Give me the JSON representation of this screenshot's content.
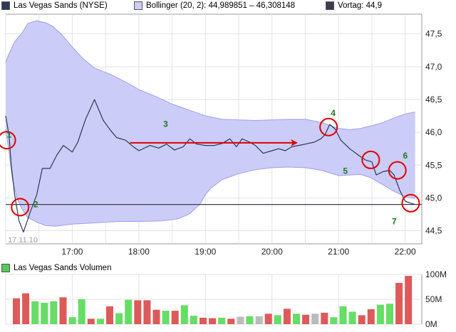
{
  "legend": {
    "price_label": "Las Vegas Sands (NYSE)",
    "bollinger_label": "Bollinger (20, 2): 44,989851 – 46,308148",
    "prev_close_label": "Vortag: 44,9",
    "volume_label": "Las Vegas Sands Volumen"
  },
  "colors": {
    "price_line": "#2b3a55",
    "band_fill": "#ccccf8",
    "band_edge": "#9f9fe6",
    "prev_close": "#3c3c50",
    "marker": "#dd0000",
    "annotation_text": "#1f7a1f",
    "vol_up": "#66dd66",
    "vol_down": "#dd5a5a",
    "vol_neutral": "#bbbbbb"
  },
  "chart_data": [
    {
      "type": "line",
      "date_label": "17.11.10",
      "x_ticks": [
        "17:00",
        "18:00",
        "19:00",
        "20:00",
        "21:00",
        "22:00"
      ],
      "y_ticks": [
        "44,5",
        "45,0",
        "45,5",
        "46,0",
        "46,5",
        "47,0",
        "47,5"
      ],
      "ylim": [
        44.3,
        47.8
      ],
      "xlim": [
        "16:00",
        "22:15"
      ],
      "grid": true,
      "prev_close": 44.9,
      "series": [
        {
          "name": "Las Vegas Sands (NYSE)",
          "points": [
            [
              "16:00",
              46.25
            ],
            [
              "16:03",
              45.95
            ],
            [
              "16:05",
              45.5
            ],
            [
              "16:08",
              45.05
            ],
            [
              "16:12",
              44.65
            ],
            [
              "16:16",
              44.48
            ],
            [
              "16:22",
              44.78
            ],
            [
              "16:28",
              45.05
            ],
            [
              "16:33",
              45.45
            ],
            [
              "16:40",
              45.45
            ],
            [
              "16:46",
              45.65
            ],
            [
              "16:52",
              45.8
            ],
            [
              "17:00",
              45.7
            ],
            [
              "17:05",
              45.85
            ],
            [
              "17:12",
              46.2
            ],
            [
              "17:20",
              46.5
            ],
            [
              "17:28",
              46.18
            ],
            [
              "17:35",
              46.02
            ],
            [
              "17:40",
              45.92
            ],
            [
              "17:48",
              45.88
            ],
            [
              "17:55",
              45.78
            ],
            [
              "18:00",
              45.72
            ],
            [
              "18:10",
              45.8
            ],
            [
              "18:18",
              45.76
            ],
            [
              "18:25",
              45.82
            ],
            [
              "18:32",
              45.73
            ],
            [
              "18:40",
              45.78
            ],
            [
              "18:46",
              45.9
            ],
            [
              "18:52",
              45.82
            ],
            [
              "19:00",
              45.8
            ],
            [
              "19:08",
              45.8
            ],
            [
              "19:15",
              45.83
            ],
            [
              "19:22",
              45.9
            ],
            [
              "19:28",
              45.78
            ],
            [
              "19:33",
              45.9
            ],
            [
              "19:40",
              45.85
            ],
            [
              "19:45",
              45.8
            ],
            [
              "19:52",
              45.68
            ],
            [
              "20:00",
              45.72
            ],
            [
              "20:06",
              45.75
            ],
            [
              "20:12",
              45.72
            ],
            [
              "20:18",
              45.78
            ],
            [
              "20:24",
              45.8
            ],
            [
              "20:30",
              45.82
            ],
            [
              "20:38",
              45.85
            ],
            [
              "20:44",
              45.9
            ],
            [
              "20:48",
              45.97
            ],
            [
              "20:52",
              46.12
            ],
            [
              "20:57",
              46.05
            ],
            [
              "21:02",
              45.88
            ],
            [
              "21:10",
              45.75
            ],
            [
              "21:18",
              45.65
            ],
            [
              "21:24",
              45.58
            ],
            [
              "21:30",
              45.55
            ],
            [
              "21:34",
              45.35
            ],
            [
              "21:40",
              45.4
            ],
            [
              "21:46",
              45.42
            ],
            [
              "21:50",
              45.35
            ],
            [
              "21:55",
              45.12
            ],
            [
              "22:00",
              44.95
            ],
            [
              "22:05",
              44.92
            ],
            [
              "22:09",
              44.9
            ]
          ]
        },
        {
          "name": "Bollinger (20, 2)",
          "upper": [
            [
              "16:00",
              47.07
            ],
            [
              "16:03",
              47.2
            ],
            [
              "16:08",
              47.38
            ],
            [
              "16:15",
              47.52
            ],
            [
              "16:20",
              47.66
            ],
            [
              "16:28",
              47.7
            ],
            [
              "16:36",
              47.67
            ],
            [
              "16:42",
              47.62
            ],
            [
              "16:50",
              47.5
            ],
            [
              "17:00",
              47.3
            ],
            [
              "17:10",
              47.12
            ],
            [
              "17:20",
              46.98
            ],
            [
              "17:35",
              46.88
            ],
            [
              "17:50",
              46.75
            ],
            [
              "18:00",
              46.65
            ],
            [
              "18:15",
              46.55
            ],
            [
              "18:30",
              46.43
            ],
            [
              "18:45",
              46.34
            ],
            [
              "19:00",
              46.25
            ],
            [
              "19:15",
              46.2
            ],
            [
              "19:30",
              46.19
            ],
            [
              "19:45",
              46.18
            ],
            [
              "20:00",
              46.19
            ],
            [
              "20:15",
              46.2
            ],
            [
              "20:30",
              46.2
            ],
            [
              "20:45",
              46.15
            ],
            [
              "21:00",
              46.06
            ],
            [
              "21:10",
              46.04
            ],
            [
              "21:20",
              46.06
            ],
            [
              "21:30",
              46.1
            ],
            [
              "21:40",
              46.15
            ],
            [
              "21:50",
              46.22
            ],
            [
              "22:00",
              46.28
            ],
            [
              "22:09",
              46.31
            ]
          ],
          "lower": [
            [
              "16:00",
              46.05
            ],
            [
              "16:03",
              45.7
            ],
            [
              "16:06",
              45.3
            ],
            [
              "16:10",
              45.0
            ],
            [
              "16:15",
              44.82
            ],
            [
              "16:20",
              44.7
            ],
            [
              "16:28",
              44.63
            ],
            [
              "16:36",
              44.58
            ],
            [
              "16:45",
              44.57
            ],
            [
              "17:00",
              44.6
            ],
            [
              "17:20",
              44.62
            ],
            [
              "17:40",
              44.64
            ],
            [
              "18:00",
              44.64
            ],
            [
              "18:20",
              44.65
            ],
            [
              "18:35",
              44.68
            ],
            [
              "18:45",
              44.75
            ],
            [
              "18:55",
              44.9
            ],
            [
              "19:00",
              45.05
            ],
            [
              "19:05",
              45.15
            ],
            [
              "19:15",
              45.28
            ],
            [
              "19:30",
              45.37
            ],
            [
              "19:45",
              45.43
            ],
            [
              "20:00",
              45.46
            ],
            [
              "20:15",
              45.47
            ],
            [
              "20:30",
              45.46
            ],
            [
              "20:45",
              45.42
            ],
            [
              "21:00",
              45.34
            ],
            [
              "21:10",
              45.35
            ],
            [
              "21:20",
              45.36
            ],
            [
              "21:30",
              45.3
            ],
            [
              "21:40",
              45.2
            ],
            [
              "21:50",
              45.1
            ],
            [
              "22:00",
              45.02
            ],
            [
              "22:09",
              44.99
            ]
          ]
        }
      ],
      "annotations": [
        {
          "label": "1",
          "x": "16:01",
          "y": 45.92
        },
        {
          "label": "2",
          "x": "16:25",
          "y": 44.86
        },
        {
          "label": "3",
          "x": "18:22",
          "y": 46.08
        },
        {
          "label": "4",
          "x": "20:53",
          "y": 46.25
        },
        {
          "label": "5",
          "x": "21:04",
          "y": 45.37
        },
        {
          "label": "6",
          "x": "21:58",
          "y": 45.6
        },
        {
          "label": "7",
          "x": "21:48",
          "y": 44.6
        }
      ],
      "markers": [
        {
          "x": "16:01",
          "y": 45.88
        },
        {
          "x": "16:13",
          "y": 44.86
        },
        {
          "x": "20:51",
          "y": 46.08
        },
        {
          "x": "21:29",
          "y": 45.58
        },
        {
          "x": "21:53",
          "y": 45.42
        },
        {
          "x": "22:05",
          "y": 44.92
        }
      ],
      "arrow": {
        "from": [
          "17:52",
          45.84
        ],
        "to": [
          "20:22",
          45.84
        ]
      }
    },
    {
      "type": "bar",
      "name": "Las Vegas Sands Volumen",
      "y_ticks": [
        "0M",
        "50M",
        "100M"
      ],
      "ylim": [
        0,
        100
      ],
      "values": [
        52,
        62,
        46,
        43,
        46,
        54,
        14,
        50,
        11,
        11,
        36,
        22,
        49,
        48,
        48,
        29,
        27,
        27,
        38,
        17,
        13,
        12,
        13,
        11,
        15,
        16,
        16,
        21,
        18,
        31,
        21,
        19,
        21,
        23,
        14,
        36,
        25,
        18,
        30,
        39,
        41,
        83,
        97
      ],
      "directions": [
        "down",
        "down",
        "up",
        "up",
        "up",
        "down",
        "up",
        "up",
        "down",
        "up",
        "down",
        "up",
        "up",
        "down",
        "down",
        "down",
        "up",
        "down",
        "up",
        "up",
        "down",
        "down",
        "up",
        "down",
        "neutral",
        "up",
        "neutral",
        "down",
        "up",
        "down",
        "up",
        "down",
        "neutral",
        "down",
        "up",
        "up",
        "up",
        "down",
        "down",
        "up",
        "up",
        "down",
        "down"
      ]
    }
  ]
}
